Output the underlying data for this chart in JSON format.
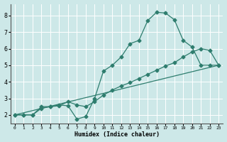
{
  "xlabel": "Humidex (Indice chaleur)",
  "bg_color": "#cde8e8",
  "grid_color": "#ffffff",
  "line_color": "#2e7d6e",
  "xlim": [
    -0.5,
    23.5
  ],
  "ylim": [
    1.5,
    8.7
  ],
  "xticks": [
    0,
    1,
    2,
    3,
    4,
    5,
    6,
    7,
    8,
    9,
    10,
    11,
    12,
    13,
    14,
    15,
    16,
    17,
    18,
    19,
    20,
    21,
    22,
    23
  ],
  "yticks": [
    2,
    3,
    4,
    5,
    6,
    7,
    8
  ],
  "line1_x": [
    0,
    1,
    2,
    3,
    4,
    5,
    6,
    7,
    8,
    9,
    10,
    11,
    12,
    13,
    14,
    15,
    16,
    17,
    18,
    19,
    20,
    21,
    22,
    23
  ],
  "line1_y": [
    2.0,
    2.0,
    2.0,
    2.5,
    2.5,
    2.6,
    2.55,
    1.75,
    1.9,
    3.0,
    4.65,
    5.0,
    5.5,
    6.3,
    6.5,
    7.7,
    8.2,
    8.15,
    7.75,
    6.5,
    6.1,
    5.0,
    5.0,
    5.0
  ],
  "line2_x": [
    0,
    23
  ],
  "line2_y": [
    2.0,
    5.0
  ],
  "line3_x": [
    0,
    1,
    2,
    3,
    4,
    5,
    6,
    7,
    8,
    9,
    10,
    11,
    12,
    13,
    14,
    15,
    16,
    17,
    18,
    19,
    20,
    21,
    22,
    23
  ],
  "line3_y": [
    2.0,
    2.0,
    2.0,
    2.4,
    2.5,
    2.55,
    2.8,
    2.6,
    2.5,
    2.8,
    3.2,
    3.5,
    3.75,
    3.95,
    4.2,
    4.45,
    4.7,
    4.95,
    5.15,
    5.5,
    5.8,
    6.0,
    5.9,
    5.0
  ]
}
